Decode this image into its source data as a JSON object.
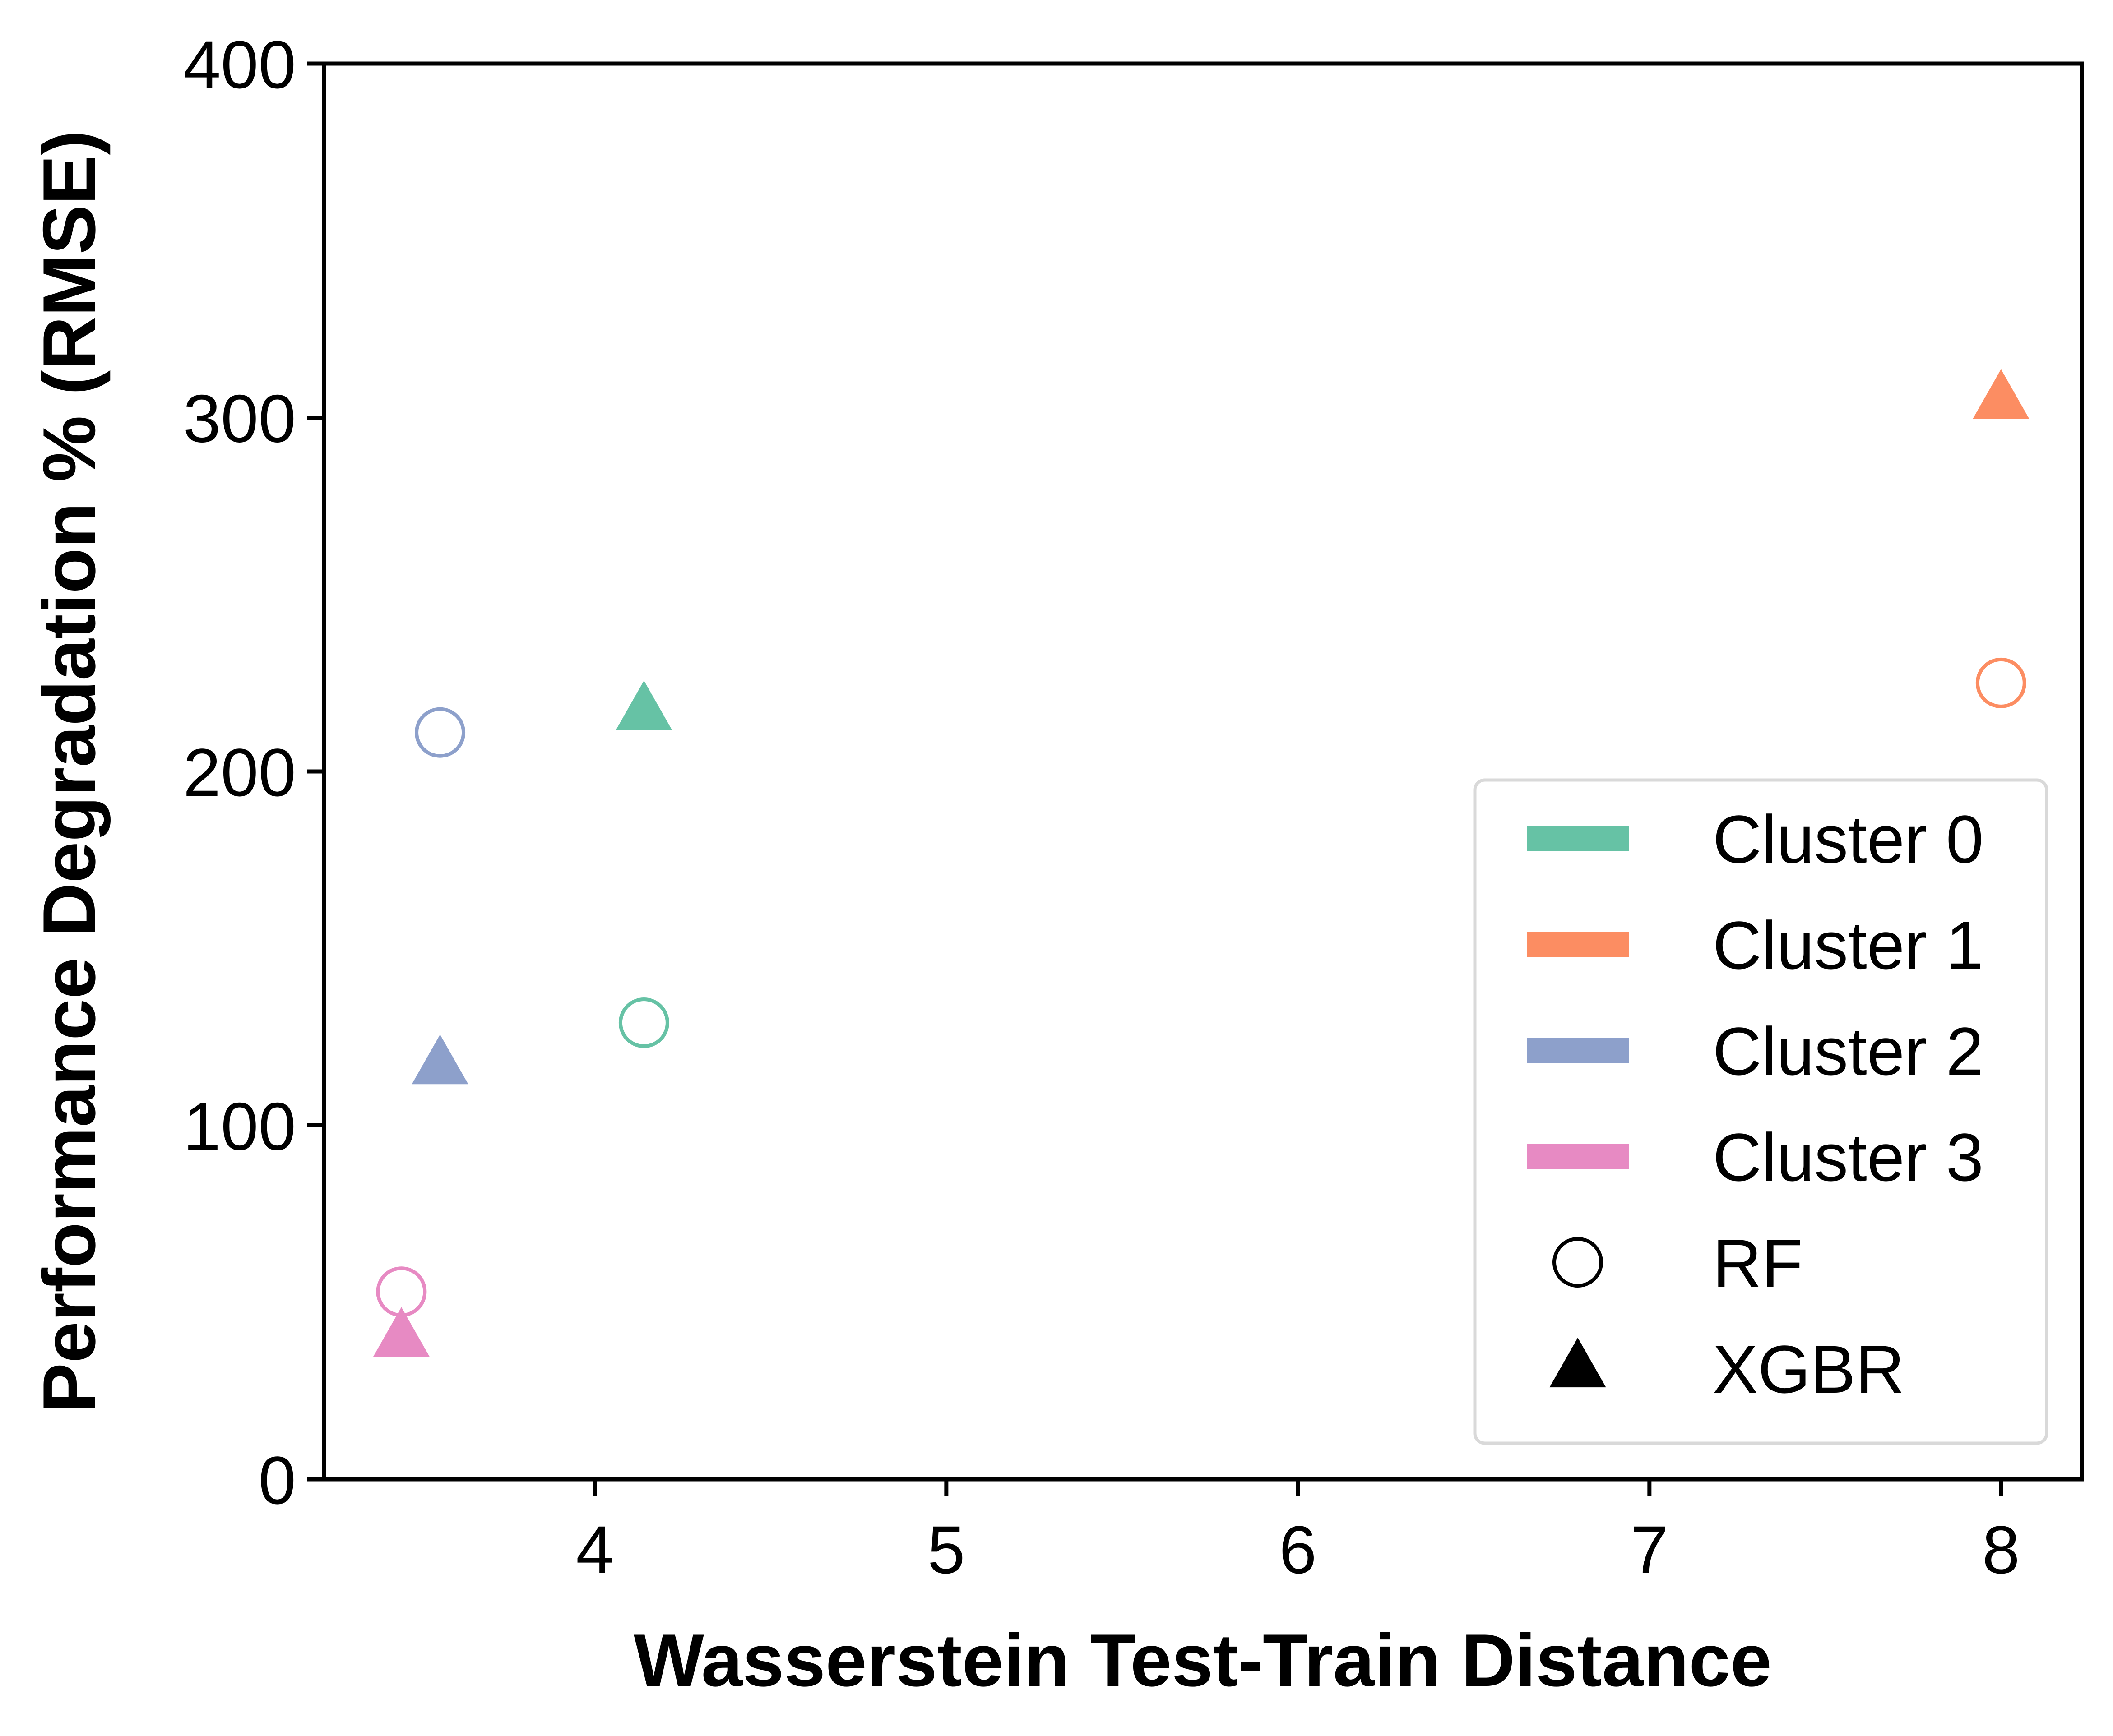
{
  "chart_data": {
    "type": "scatter",
    "xlabel": "Wasserstein Test-Train Distance",
    "ylabel": "Performance Degradation % (RMSE)",
    "xlim": [
      3.23,
      8.23
    ],
    "ylim": [
      0,
      400
    ],
    "xticks": [
      "4",
      "5",
      "6",
      "7",
      "8"
    ],
    "yticks": [
      "0",
      "100",
      "200",
      "300",
      "400"
    ],
    "grid": false,
    "legend_position": "lower right",
    "clusters": [
      {
        "name": "Cluster 0",
        "color": "#66c2a5"
      },
      {
        "name": "Cluster 1",
        "color": "#fc8d62"
      },
      {
        "name": "Cluster 2",
        "color": "#8da0cb"
      },
      {
        "name": "Cluster 3",
        "color": "#e78ac3"
      }
    ],
    "models": [
      {
        "name": "RF",
        "marker": "open-circle"
      },
      {
        "name": "XGBR",
        "marker": "filled-triangle"
      }
    ],
    "points": [
      {
        "cluster": 0,
        "model": "RF",
        "x": 4.14,
        "y": 129
      },
      {
        "cluster": 0,
        "model": "XGBR",
        "x": 4.14,
        "y": 217
      },
      {
        "cluster": 1,
        "model": "RF",
        "x": 8.0,
        "y": 225
      },
      {
        "cluster": 1,
        "model": "XGBR",
        "x": 8.0,
        "y": 305
      },
      {
        "cluster": 2,
        "model": "RF",
        "x": 3.56,
        "y": 211
      },
      {
        "cluster": 2,
        "model": "XGBR",
        "x": 3.56,
        "y": 117
      },
      {
        "cluster": 3,
        "model": "RF",
        "x": 3.45,
        "y": 53
      },
      {
        "cluster": 3,
        "model": "XGBR",
        "x": 3.45,
        "y": 40
      }
    ]
  }
}
